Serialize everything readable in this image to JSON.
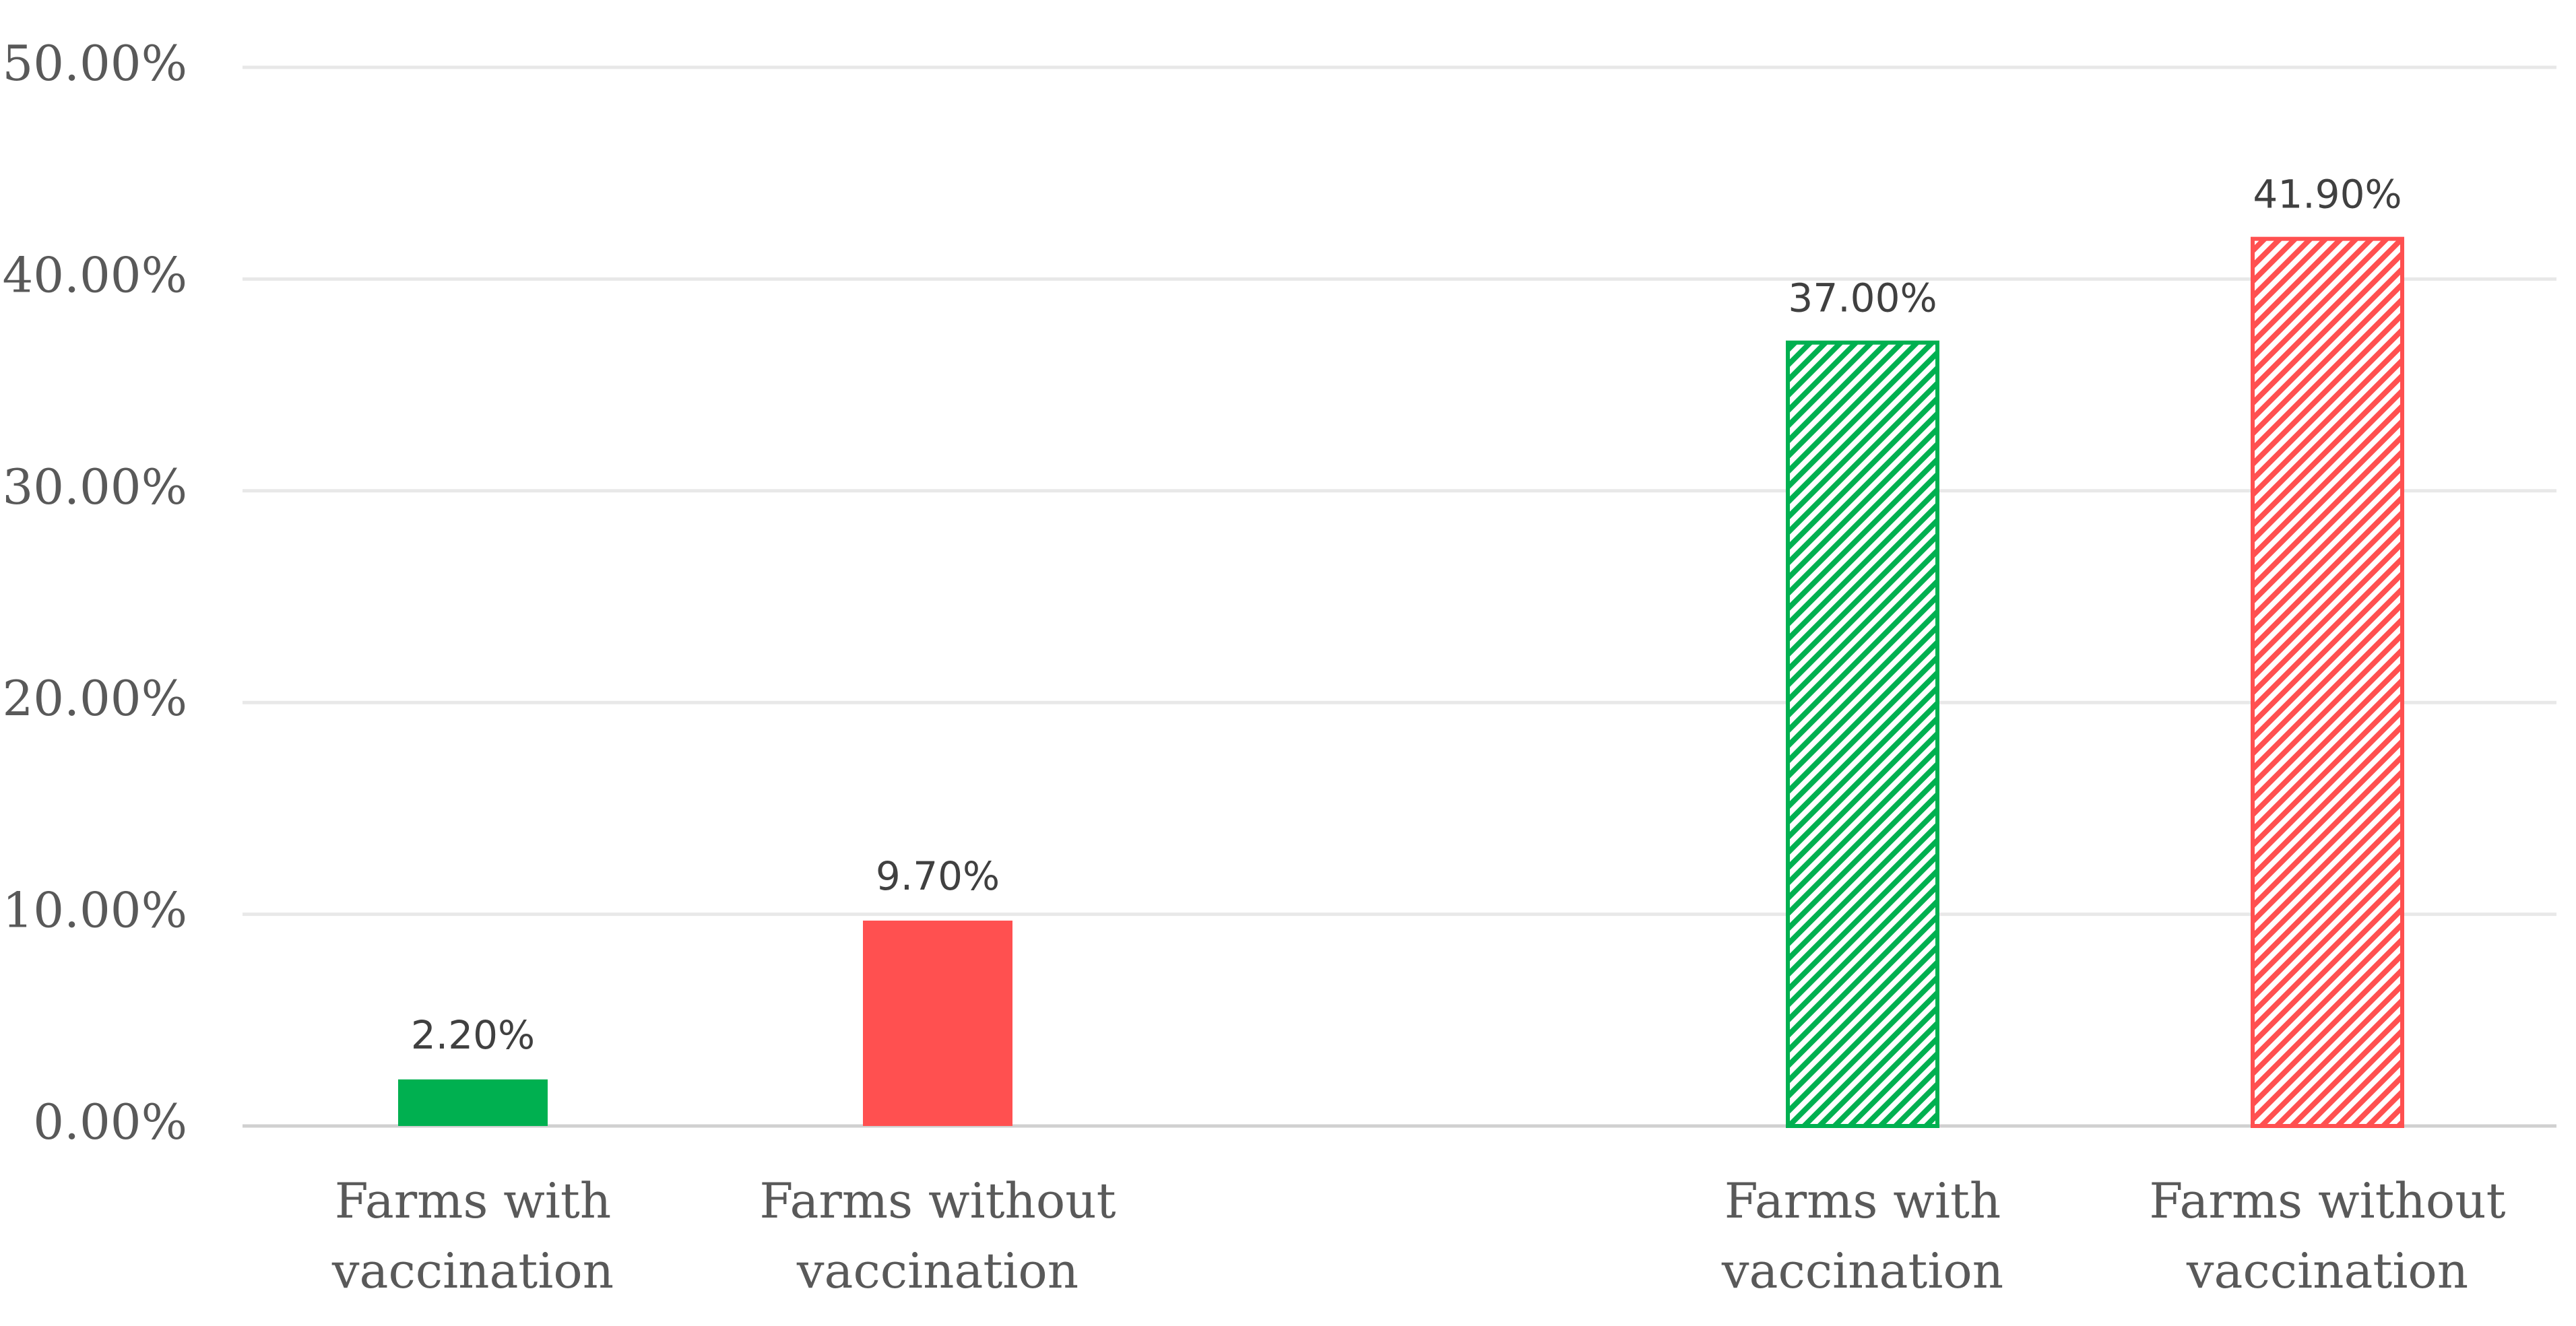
{
  "chart_data": {
    "type": "bar",
    "title": "",
    "xlabel": "",
    "ylabel": "",
    "ylim": [
      0,
      50
    ],
    "y_tick_values": [
      0,
      10,
      20,
      30,
      40,
      50
    ],
    "y_tick_labels": [
      "0.00%",
      "10.00%",
      "20.00%",
      "30.00%",
      "40.00%",
      "50.00%"
    ],
    "grid": true,
    "legend": "none",
    "categories": [
      "Farms with vaccination",
      "Farms without vaccination",
      "Farms with vaccination",
      "Farms without vaccination"
    ],
    "category_lines": [
      [
        "Farms with",
        "vaccination"
      ],
      [
        "Farms without",
        "vaccination"
      ],
      [
        "Farms with",
        "vaccination"
      ],
      [
        "Farms without",
        "vaccination"
      ]
    ],
    "values": [
      2.2,
      9.7,
      37.0,
      41.9
    ],
    "value_labels": [
      "2.20%",
      "9.70%",
      "37.00%",
      "41.90%"
    ],
    "bar_styles": [
      "solid",
      "solid",
      "hatched",
      "hatched"
    ],
    "bar_colors": [
      "#00b050",
      "#ff5050",
      "#00b050",
      "#ff5050"
    ]
  }
}
